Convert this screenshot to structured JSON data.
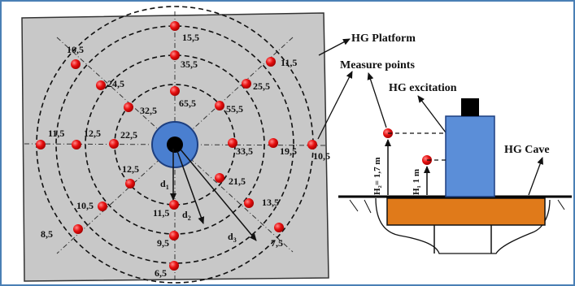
{
  "points": [
    {
      "label": "15,5"
    },
    {
      "label": "35,5"
    },
    {
      "label": "65,5"
    },
    {
      "label": "11,5"
    },
    {
      "label": "25,5"
    },
    {
      "label": "55,5"
    },
    {
      "label": "10,5"
    },
    {
      "label": "19,5"
    },
    {
      "label": "33,5"
    },
    {
      "label": "7,5"
    },
    {
      "label": "13,5"
    },
    {
      "label": "21,5"
    },
    {
      "label": "6,5"
    },
    {
      "label": "9,5"
    },
    {
      "label": "11,5"
    },
    {
      "label": "8,5"
    },
    {
      "label": "10,5"
    },
    {
      "label": "12,5"
    },
    {
      "label": "11,5"
    },
    {
      "label": "12,5"
    },
    {
      "label": "22,5"
    },
    {
      "label": "10,5"
    },
    {
      "label": "24,5"
    },
    {
      "label": "32,5"
    }
  ],
  "distances": {
    "d1": "d",
    "d1_sub": "1",
    "d2": "d",
    "d2_sub": "2",
    "d3": "d",
    "d3_sub": "3"
  },
  "callouts": {
    "platform": "HG Platform",
    "measure_points": "Measure points",
    "excitation": "HG excitation",
    "cave": "HG Cave"
  },
  "heights": {
    "h2": "H₂= 1,7 m",
    "h1": "H₁ 1 m"
  },
  "colors": {
    "platform": "#c8c8c8",
    "point": "#e81010",
    "hub": "#4a7fd0",
    "shaker": "#5b8ed8",
    "cave_block": "#e07a1a"
  }
}
